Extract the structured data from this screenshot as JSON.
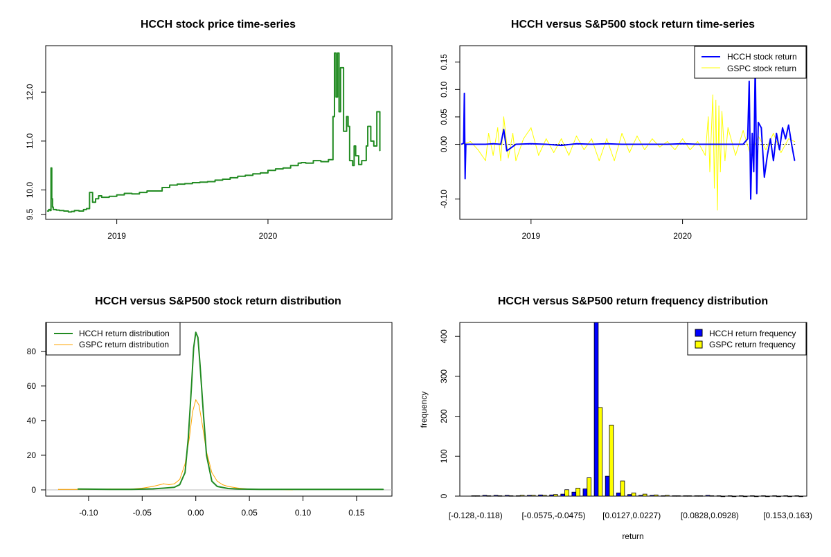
{
  "colors": {
    "hcch_price": "#228B22",
    "hcch_return": "#0000FF",
    "gspc_return": "#FFFF00",
    "hcch_density": "#228B22",
    "gspc_density": "#FFA500",
    "hist_hcch": "#0000FF",
    "hist_gspc": "#FFFF00"
  },
  "chart_data": [
    {
      "id": "price",
      "type": "line",
      "title": "HCCH stock price time-series",
      "xlabel": "",
      "ylabel": "",
      "x_ticks": [
        {
          "label": "2019",
          "value": 2019.0
        },
        {
          "label": "2020",
          "value": 2020.0
        }
      ],
      "y_ticks": [
        {
          "label": "9.5",
          "value": 9.5
        },
        {
          "label": "10.0",
          "value": 10.0
        },
        {
          "label": "11.0",
          "value": 11.0
        },
        {
          "label": "12.0",
          "value": 12.0
        }
      ],
      "xlim": [
        2018.53,
        2020.82
      ],
      "ylim": [
        9.4,
        12.95
      ],
      "series": [
        {
          "name": "HCCH",
          "color": "#228B22",
          "x": [
            2018.54,
            2018.55,
            2018.56,
            2018.565,
            2018.57,
            2018.575,
            2018.58,
            2018.6,
            2018.62,
            2018.65,
            2018.68,
            2018.7,
            2018.72,
            2018.75,
            2018.78,
            2018.8,
            2018.82,
            2018.84,
            2018.86,
            2018.88,
            2018.9,
            2018.95,
            2019.0,
            2019.05,
            2019.1,
            2019.15,
            2019.2,
            2019.3,
            2019.35,
            2019.4,
            2019.45,
            2019.5,
            2019.55,
            2019.6,
            2019.65,
            2019.7,
            2019.75,
            2019.8,
            2019.85,
            2019.9,
            2019.95,
            2020.0,
            2020.05,
            2020.1,
            2020.15,
            2020.2,
            2020.22,
            2020.25,
            2020.3,
            2020.35,
            2020.4,
            2020.43,
            2020.44,
            2020.45,
            2020.46,
            2020.47,
            2020.48,
            2020.5,
            2020.52,
            2020.53,
            2020.54,
            2020.56,
            2020.57,
            2020.58,
            2020.6,
            2020.62,
            2020.65,
            2020.66,
            2020.68,
            2020.7,
            2020.72,
            2020.74
          ],
          "y": [
            9.57,
            9.6,
            9.58,
            10.45,
            9.82,
            9.65,
            9.6,
            9.59,
            9.58,
            9.57,
            9.55,
            9.56,
            9.58,
            9.57,
            9.6,
            9.62,
            9.95,
            9.75,
            9.82,
            9.88,
            9.85,
            9.87,
            9.9,
            9.93,
            9.92,
            9.95,
            9.98,
            10.05,
            10.1,
            10.12,
            10.13,
            10.15,
            10.16,
            10.17,
            10.2,
            10.22,
            10.25,
            10.28,
            10.3,
            10.33,
            10.35,
            10.4,
            10.43,
            10.45,
            10.5,
            10.55,
            10.56,
            10.55,
            10.6,
            10.58,
            10.62,
            11.5,
            12.8,
            11.9,
            12.8,
            11.6,
            12.5,
            11.2,
            11.5,
            11.3,
            10.6,
            10.5,
            10.9,
            10.7,
            10.52,
            10.6,
            10.9,
            11.3,
            11.0,
            10.9,
            11.6,
            10.8
          ]
        }
      ]
    },
    {
      "id": "returns",
      "type": "line",
      "title": "HCCH versus S&P500 stock return time-series",
      "x_ticks": [
        {
          "label": "2019",
          "value": 2019.0
        },
        {
          "label": "2020",
          "value": 2020.0
        }
      ],
      "y_ticks": [
        {
          "label": "-0.10",
          "value": -0.1
        },
        {
          "label": "0.00",
          "value": 0.0
        },
        {
          "label": "0.05",
          "value": 0.05
        },
        {
          "label": "0.10",
          "value": 0.1
        },
        {
          "label": "0.15",
          "value": 0.15
        }
      ],
      "xlim": [
        2018.53,
        2020.82
      ],
      "ylim": [
        -0.137,
        0.18
      ],
      "legend": {
        "position": "top-right",
        "entries": [
          "HCCH stock return",
          "GSPC stock return"
        ]
      },
      "series": [
        {
          "name": "HCCH stock return",
          "color": "#0000FF",
          "x": [
            2018.54,
            2018.555,
            2018.56,
            2018.565,
            2018.57,
            2018.6,
            2018.7,
            2018.75,
            2018.8,
            2018.82,
            2018.84,
            2018.9,
            2019.0,
            2019.1,
            2019.2,
            2019.3,
            2019.4,
            2019.5,
            2019.6,
            2019.7,
            2019.8,
            2019.9,
            2020.0,
            2020.1,
            2020.2,
            2020.3,
            2020.4,
            2020.43,
            2020.44,
            2020.45,
            2020.46,
            2020.47,
            2020.48,
            2020.49,
            2020.5,
            2020.52,
            2020.54,
            2020.56,
            2020.58,
            2020.6,
            2020.62,
            2020.64,
            2020.66,
            2020.68,
            2020.7,
            2020.72,
            2020.74
          ],
          "y": [
            0.0,
            0.002,
            0.093,
            -0.063,
            0.0,
            0.0,
            0.0,
            0.001,
            0.0,
            0.027,
            -0.012,
            0.0,
            0.001,
            0.0,
            -0.002,
            0.001,
            0.0,
            0.001,
            0.0,
            0.0,
            0.0,
            0.0,
            0.001,
            0.0,
            0.0,
            0.0,
            0.0,
            0.01,
            0.115,
            -0.1,
            0.02,
            -0.05,
            0.15,
            -0.09,
            0.04,
            0.03,
            -0.06,
            -0.02,
            0.01,
            -0.03,
            0.02,
            -0.01,
            0.03,
            0.01,
            0.035,
            0.0,
            -0.03
          ]
        },
        {
          "name": "GSPC stock return",
          "color": "#FFFF00",
          "x": [
            2018.55,
            2018.6,
            2018.65,
            2018.7,
            2018.72,
            2018.75,
            2018.78,
            2018.8,
            2018.82,
            2018.85,
            2018.88,
            2018.9,
            2018.95,
            2019.0,
            2019.05,
            2019.1,
            2019.15,
            2019.2,
            2019.25,
            2019.3,
            2019.35,
            2019.4,
            2019.45,
            2019.5,
            2019.55,
            2019.6,
            2019.65,
            2019.7,
            2019.75,
            2019.8,
            2019.85,
            2019.9,
            2019.95,
            2020.0,
            2020.05,
            2020.1,
            2020.15,
            2020.17,
            2020.18,
            2020.2,
            2020.21,
            2020.22,
            2020.23,
            2020.24,
            2020.25,
            2020.26,
            2020.28,
            2020.3,
            2020.35,
            2020.4,
            2020.45,
            2020.5,
            2020.55,
            2020.6,
            2020.65,
            2020.7,
            2020.74
          ],
          "y": [
            0.0,
            0.005,
            -0.01,
            -0.03,
            0.02,
            -0.02,
            0.03,
            -0.03,
            0.05,
            -0.025,
            0.02,
            -0.03,
            0.01,
            0.03,
            -0.02,
            0.01,
            -0.015,
            0.01,
            -0.02,
            0.015,
            -0.01,
            0.01,
            -0.03,
            0.01,
            -0.03,
            0.02,
            -0.015,
            0.015,
            -0.01,
            0.01,
            -0.005,
            0.005,
            -0.01,
            0.01,
            -0.01,
            0.005,
            -0.02,
            0.05,
            -0.05,
            0.09,
            -0.08,
            0.08,
            -0.12,
            0.07,
            -0.05,
            0.06,
            -0.03,
            0.03,
            -0.02,
            0.025,
            -0.02,
            0.015,
            -0.01,
            0.02,
            -0.015,
            0.01,
            0.005
          ]
        }
      ]
    },
    {
      "id": "density",
      "type": "line",
      "title": "HCCH versus S&P500 stock return distribution",
      "x_ticks": [
        {
          "label": "-0.10",
          "value": -0.1
        },
        {
          "label": "-0.05",
          "value": -0.05
        },
        {
          "label": "0.00",
          "value": 0.0
        },
        {
          "label": "0.05",
          "value": 0.05
        },
        {
          "label": "0.10",
          "value": 0.1
        },
        {
          "label": "0.15",
          "value": 0.15
        }
      ],
      "y_ticks": [
        {
          "label": "0",
          "value": 0
        },
        {
          "label": "20",
          "value": 20
        },
        {
          "label": "40",
          "value": 40
        },
        {
          "label": "60",
          "value": 60
        },
        {
          "label": "80",
          "value": 80
        }
      ],
      "xlim": [
        -0.14,
        0.183
      ],
      "ylim": [
        -3.6,
        96.7
      ],
      "legend": {
        "position": "top-left",
        "entries": [
          "HCCH return distribution",
          "GSPC return distribution"
        ]
      },
      "series": [
        {
          "name": "HCCH return distribution",
          "color": "#228B22",
          "x": [
            -0.11,
            -0.08,
            -0.06,
            -0.04,
            -0.03,
            -0.02,
            -0.015,
            -0.01,
            -0.007,
            -0.004,
            -0.002,
            0.0,
            0.002,
            0.004,
            0.007,
            0.01,
            0.015,
            0.02,
            0.03,
            0.04,
            0.06,
            0.08,
            0.1,
            0.12,
            0.15,
            0.175
          ],
          "y": [
            0.5,
            0.3,
            0.3,
            0.6,
            1.0,
            1.5,
            3.0,
            10.0,
            30.0,
            60.0,
            82.0,
            91.0,
            88.0,
            72.0,
            45.0,
            20.0,
            5.0,
            2.0,
            0.8,
            0.5,
            0.3,
            0.3,
            0.3,
            0.3,
            0.3,
            0.3
          ]
        },
        {
          "name": "GSPC return distribution",
          "color": "#FFA500",
          "x": [
            -0.128,
            -0.1,
            -0.08,
            -0.06,
            -0.05,
            -0.04,
            -0.03,
            -0.025,
            -0.02,
            -0.015,
            -0.01,
            -0.006,
            -0.003,
            0.0,
            0.003,
            0.006,
            0.01,
            0.015,
            0.02,
            0.025,
            0.03,
            0.04,
            0.05,
            0.06,
            0.08,
            0.09
          ],
          "y": [
            0.3,
            0.3,
            0.5,
            0.5,
            1.0,
            2.0,
            3.5,
            3.0,
            3.5,
            6.0,
            15.0,
            30.0,
            45.0,
            52.0,
            49.0,
            38.0,
            22.0,
            10.0,
            5.0,
            3.0,
            2.0,
            1.0,
            0.5,
            0.3,
            0.2,
            0.0
          ]
        }
      ]
    },
    {
      "id": "histogram",
      "type": "bar",
      "title": "HCCH versus S&P500 return frequency distribution",
      "xlabel": "return",
      "ylabel": "frequency",
      "x_tick_labels": [
        {
          "label": "[-0.128,-0.118)",
          "index": 0
        },
        {
          "label": "[-0.0575,-0.0475)",
          "index": 7
        },
        {
          "label": "[0.0127,0.0227)",
          "index": 14
        },
        {
          "label": "[0.0828,0.0928)",
          "index": 21
        },
        {
          "label": "[0.153,0.163)",
          "index": 28
        }
      ],
      "y_ticks": [
        {
          "label": "0",
          "value": 0
        },
        {
          "label": "100",
          "value": 100
        },
        {
          "label": "200",
          "value": 200
        },
        {
          "label": "300",
          "value": 300
        },
        {
          "label": "400",
          "value": 400
        }
      ],
      "ylim": [
        0,
        435
      ],
      "legend": {
        "position": "top-right",
        "entries": [
          "HCCH return frequency",
          "GSPC return frequency"
        ]
      },
      "series": [
        {
          "name": "HCCH return frequency",
          "color": "#0000FF",
          "values": [
            1,
            2,
            2,
            2,
            1,
            2,
            3,
            3,
            5,
            10,
            18,
            435,
            50,
            8,
            4,
            2,
            2,
            1,
            1,
            1,
            1,
            2,
            1,
            1,
            1,
            1,
            1,
            1,
            1,
            1
          ]
        },
        {
          "name": "GSPC return frequency",
          "color": "#FFFF00",
          "values": [
            1,
            1,
            1,
            1,
            2,
            2,
            2,
            4,
            16,
            20,
            46,
            222,
            178,
            38,
            8,
            5,
            3,
            2,
            1,
            1,
            1,
            1,
            0,
            0,
            0,
            0,
            0,
            0,
            0,
            0
          ]
        }
      ]
    }
  ]
}
